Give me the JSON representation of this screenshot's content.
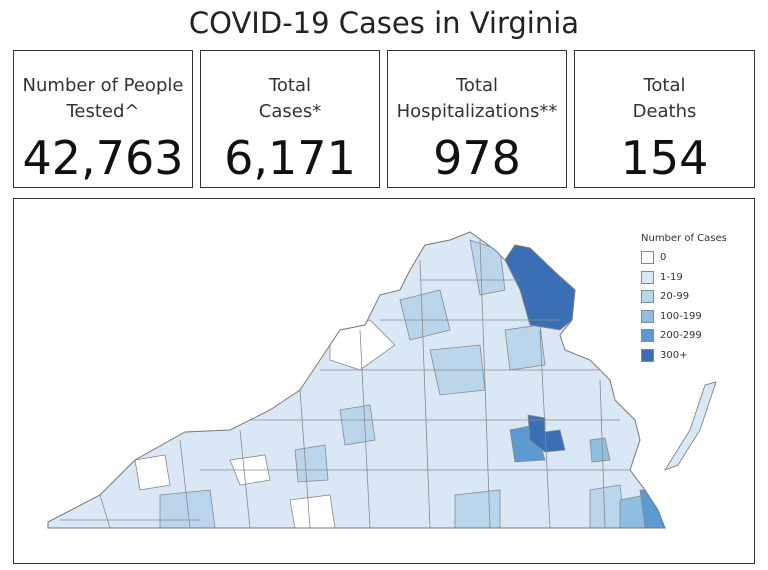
{
  "title": "COVID-19 Cases in Virginia",
  "cards": [
    {
      "label": "Number of People\nTested^",
      "value": "42,763"
    },
    {
      "label": "Total\nCases*",
      "value": "6,171"
    },
    {
      "label": "Total\nHospitalizations**",
      "value": "978"
    },
    {
      "label": "Total\nDeaths",
      "value": "154"
    }
  ],
  "legend": {
    "title": "Number of Cases",
    "items": [
      {
        "label": "0",
        "color": "#ffffff"
      },
      {
        "label": "1-19",
        "color": "#dae8f5"
      },
      {
        "label": "20-99",
        "color": "#b9d6ec"
      },
      {
        "label": "100-199",
        "color": "#8ebfe2"
      },
      {
        "label": "200-299",
        "color": "#5b9bd2"
      },
      {
        "label": "300+",
        "color": "#3b6fb5"
      }
    ]
  }
}
